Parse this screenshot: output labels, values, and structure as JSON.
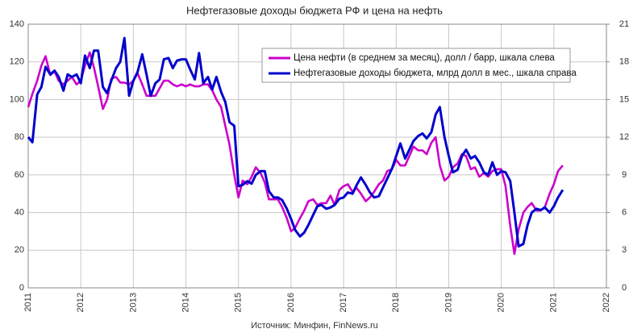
{
  "chart_data": {
    "type": "line",
    "title": "Нефтегазовые доходы бюджета РФ и цена на нефть",
    "source": "Источник: Минфин, FinNews.ru",
    "x": [
      2011,
      2011.08,
      2011.17,
      2011.25,
      2011.33,
      2011.42,
      2011.5,
      2011.58,
      2011.67,
      2011.75,
      2011.83,
      2011.92,
      2012,
      2012.08,
      2012.17,
      2012.25,
      2012.33,
      2012.42,
      2012.5,
      2012.58,
      2012.67,
      2012.75,
      2012.83,
      2012.92,
      2013,
      2013.08,
      2013.17,
      2013.25,
      2013.33,
      2013.42,
      2013.5,
      2013.58,
      2013.67,
      2013.75,
      2013.83,
      2013.92,
      2014,
      2014.08,
      2014.17,
      2014.25,
      2014.33,
      2014.42,
      2014.5,
      2014.58,
      2014.67,
      2014.75,
      2014.83,
      2014.92,
      2015,
      2015.08,
      2015.17,
      2015.25,
      2015.33,
      2015.42,
      2015.5,
      2015.58,
      2015.67,
      2015.75,
      2015.83,
      2015.92,
      2016,
      2016.08,
      2016.17,
      2016.25,
      2016.33,
      2016.42,
      2016.5,
      2016.58,
      2016.67,
      2016.75,
      2016.83,
      2016.92,
      2017,
      2017.08,
      2017.17,
      2017.25,
      2017.33,
      2017.42,
      2017.5,
      2017.58,
      2017.67,
      2017.75,
      2017.83,
      2017.92,
      2018,
      2018.08,
      2018.17,
      2018.25,
      2018.33,
      2018.42,
      2018.5,
      2018.58,
      2018.67,
      2018.75,
      2018.83,
      2018.92,
      2019,
      2019.08,
      2019.17,
      2019.25,
      2019.33,
      2019.42,
      2019.5,
      2019.58,
      2019.67,
      2019.75,
      2019.83,
      2019.92,
      2020,
      2020.08,
      2020.17,
      2020.25,
      2020.33,
      2020.42,
      2020.5,
      2020.58,
      2020.67,
      2020.75,
      2020.83,
      2020.92,
      2021,
      2021.08,
      2021.17
    ],
    "series": [
      {
        "name": "Цена нефти (в среднем за месяц), долл / барр, шкала слева",
        "color": "#cc00cc",
        "axis": "y",
        "values": [
          96,
          103,
          110,
          118,
          123,
          113,
          115,
          110,
          108,
          110,
          112,
          108,
          110,
          118,
          125,
          117,
          107,
          95,
          100,
          111,
          112,
          109,
          109,
          108,
          110,
          114,
          108,
          102,
          102,
          102,
          106,
          110,
          110,
          108,
          107,
          108,
          107,
          108,
          107,
          107,
          108,
          108,
          105,
          100,
          96,
          86,
          76,
          60,
          48,
          57,
          55,
          59,
          64,
          61,
          56,
          47,
          47,
          47,
          43,
          37,
          30,
          32,
          37,
          41,
          46,
          47,
          44,
          45,
          45,
          49,
          44,
          52,
          54,
          55,
          51,
          53,
          50,
          46,
          48,
          51,
          55,
          57,
          62,
          63,
          68,
          65,
          65,
          70,
          75,
          73,
          73,
          71,
          77,
          80,
          65,
          57,
          59,
          64,
          66,
          71,
          70,
          63,
          64,
          59,
          61,
          59,
          62,
          63,
          63,
          54,
          33,
          18,
          31,
          40,
          43,
          45,
          41,
          41,
          43,
          50,
          55,
          62,
          65
        ]
      },
      {
        "name": "Нефтегазовые доходы бюджета, млрд долл в мес., шкала справа",
        "color": "#0000cc",
        "axis": "y2",
        "values": [
          12,
          11.6,
          15.4,
          16,
          17.6,
          17,
          17.3,
          16.8,
          15.7,
          17,
          16.8,
          17,
          16.3,
          18.5,
          17.5,
          18.9,
          18.9,
          16,
          15.5,
          16.5,
          17.5,
          18,
          19.9,
          15.3,
          16.5,
          17.2,
          18.6,
          17,
          15.3,
          16.3,
          16.6,
          18.2,
          18.3,
          17.5,
          18.1,
          18.2,
          18.2,
          17.4,
          16.6,
          18.7,
          16.3,
          16.8,
          15.8,
          16.8,
          15.6,
          14.8,
          13.2,
          12.9,
          8.1,
          8.2,
          8.5,
          8.3,
          9,
          9.3,
          9.3,
          7.7,
          7.2,
          7.2,
          7,
          6.3,
          5.5,
          4.6,
          4.1,
          4.4,
          5,
          5.8,
          6.5,
          6.6,
          6.3,
          6.4,
          6.6,
          7.1,
          7.2,
          7.6,
          7.5,
          8.2,
          8.8,
          8.2,
          7.6,
          7.2,
          7.3,
          8,
          8.7,
          9.5,
          10.5,
          11.5,
          10.3,
          11,
          11.7,
          12.1,
          12.3,
          11.9,
          12.4,
          13.8,
          14.4,
          12,
          10.5,
          9.2,
          9.4,
          10.5,
          11,
          10.3,
          10.5,
          10,
          9.2,
          9,
          10,
          9,
          9.3,
          9.2,
          8.5,
          6,
          3.3,
          3.5,
          5,
          6,
          6.3,
          6.2,
          6.4,
          6,
          6.5,
          7.2,
          7.8
        ]
      }
    ],
    "xlim": [
      2011,
      2022
    ],
    "xticks": [
      2011,
      2012,
      2013,
      2014,
      2015,
      2016,
      2017,
      2018,
      2019,
      2020,
      2021,
      2022
    ],
    "ylim": [
      0,
      140
    ],
    "yticks": [
      0,
      20,
      40,
      60,
      80,
      100,
      120,
      140
    ],
    "y2lim": [
      0,
      21
    ],
    "y2ticks": [
      0,
      3,
      6,
      9,
      12,
      15,
      18,
      21
    ],
    "grid": true
  }
}
